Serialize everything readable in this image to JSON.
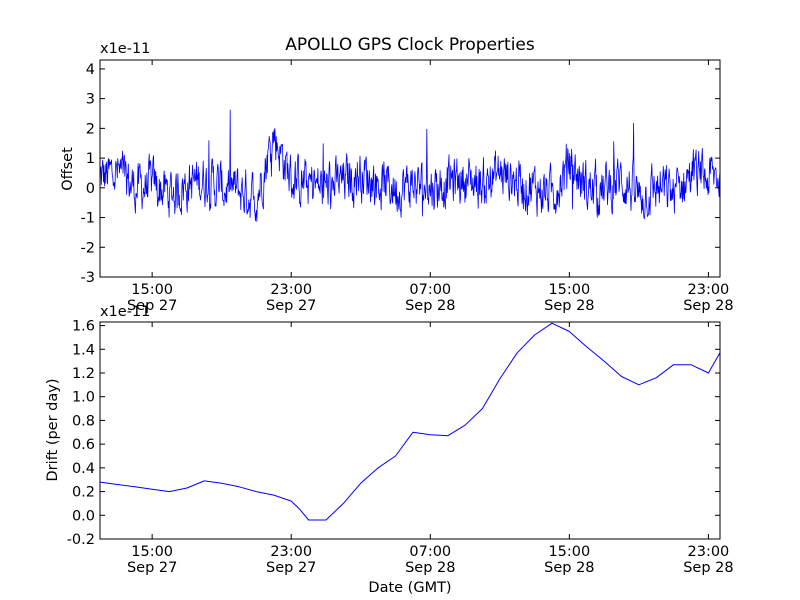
{
  "title": "APOLLO GPS Clock Properties",
  "xlabel": "Date (GMT)",
  "x_ticks": [
    {
      "time": "15:00",
      "date": "Sep 27"
    },
    {
      "time": "23:00",
      "date": "Sep 27"
    },
    {
      "time": "07:00",
      "date": "Sep 28"
    },
    {
      "time": "15:00",
      "date": "Sep 28"
    },
    {
      "time": "23:00",
      "date": "Sep 28"
    }
  ],
  "chart_data": [
    {
      "type": "line",
      "title": "APOLLO GPS Clock Properties",
      "ylabel": "Offset",
      "y_multiplier": "x1e-11",
      "xlim": [
        "Sep 27 12:00",
        "Sep 28 23:40"
      ],
      "ylim": [
        -3,
        4.3
      ],
      "y_ticks": [
        "-3",
        "-2",
        "-1",
        "0",
        "1",
        "2",
        "3",
        "4"
      ],
      "grid": false,
      "color": "#0000ff",
      "series": [
        {
          "x": [
            "Sep 27 12:00",
            "Sep 27 13:00",
            "Sep 27 14:00",
            "Sep 27 15:00",
            "Sep 27 16:00",
            "Sep 27 17:00",
            "Sep 27 18:00",
            "Sep 27 19:00",
            "Sep 27 20:00",
            "Sep 27 21:00",
            "Sep 27 22:00",
            "Sep 27 23:00",
            "Sep 28 00:00",
            "Sep 28 01:00",
            "Sep 28 02:00",
            "Sep 28 03:00",
            "Sep 28 04:00",
            "Sep 28 05:00",
            "Sep 28 06:00",
            "Sep 28 07:00",
            "Sep 28 08:00",
            "Sep 28 09:00",
            "Sep 28 10:00",
            "Sep 28 11:00",
            "Sep 28 12:00",
            "Sep 28 13:00",
            "Sep 28 14:00",
            "Sep 28 15:00",
            "Sep 28 16:00",
            "Sep 28 17:00",
            "Sep 28 18:00",
            "Sep 28 19:00",
            "Sep 28 20:00",
            "Sep 28 21:00",
            "Sep 28 22:00",
            "Sep 28 23:00",
            "Sep 28 23:40"
          ],
          "values": [
            0.3,
            0.5,
            0.0,
            0.1,
            -0.2,
            0.1,
            0.3,
            0.0,
            -0.1,
            -0.3,
            1.8,
            0.3,
            0.1,
            0.0,
            0.2,
            0.5,
            0.2,
            0.0,
            0.1,
            0.0,
            0.2,
            0.3,
            0.1,
            0.5,
            0.2,
            0.0,
            -0.2,
            0.8,
            0.0,
            -0.1,
            0.3,
            -0.3,
            0.0,
            -0.2,
            0.5,
            0.3,
            0.4
          ]
        }
      ]
    },
    {
      "type": "line",
      "ylabel": "Drift (per day)",
      "y_multiplier": "x1e-11",
      "xlabel": "Date (GMT)",
      "xlim": [
        "Sep 27 12:00",
        "Sep 28 23:40"
      ],
      "ylim": [
        -0.2,
        1.63
      ],
      "y_ticks": [
        "-0.2",
        "0.0",
        "0.2",
        "0.4",
        "0.6",
        "0.8",
        "1.0",
        "1.2",
        "1.4",
        "1.6"
      ],
      "grid": false,
      "color": "#0000ff",
      "series": [
        {
          "x": [
            "Sep 27 12:00",
            "Sep 27 13:00",
            "Sep 27 14:00",
            "Sep 27 15:00",
            "Sep 27 16:00",
            "Sep 27 17:00",
            "Sep 27 18:00",
            "Sep 27 19:00",
            "Sep 27 20:00",
            "Sep 27 21:00",
            "Sep 27 22:00",
            "Sep 27 23:00",
            "Sep 27 23:30",
            "Sep 28 00:00",
            "Sep 28 01:00",
            "Sep 28 02:00",
            "Sep 28 03:00",
            "Sep 28 04:00",
            "Sep 28 05:00",
            "Sep 28 06:00",
            "Sep 28 07:00",
            "Sep 28 08:00",
            "Sep 28 09:00",
            "Sep 28 10:00",
            "Sep 28 11:00",
            "Sep 28 12:00",
            "Sep 28 13:00",
            "Sep 28 14:00",
            "Sep 28 15:00",
            "Sep 28 16:00",
            "Sep 28 17:00",
            "Sep 28 18:00",
            "Sep 28 19:00",
            "Sep 28 20:00",
            "Sep 28 21:00",
            "Sep 28 22:00",
            "Sep 28 23:00",
            "Sep 28 23:40"
          ],
          "values": [
            0.28,
            0.26,
            0.24,
            0.22,
            0.2,
            0.23,
            0.29,
            0.27,
            0.24,
            0.2,
            0.17,
            0.12,
            0.05,
            -0.04,
            -0.04,
            0.1,
            0.27,
            0.4,
            0.5,
            0.7,
            0.68,
            0.67,
            0.76,
            0.9,
            1.15,
            1.37,
            1.52,
            1.62,
            1.55,
            1.42,
            1.3,
            1.17,
            1.1,
            1.16,
            1.27,
            1.27,
            1.2,
            1.37
          ]
        }
      ]
    }
  ]
}
